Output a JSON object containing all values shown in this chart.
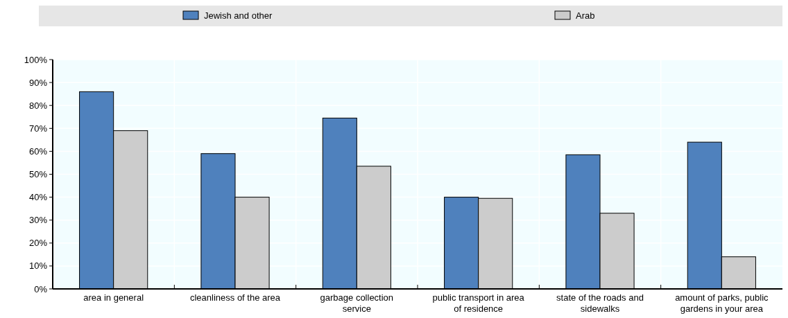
{
  "chart_data": {
    "type": "bar",
    "categories": [
      "area in general",
      "cleanliness of the area",
      "garbage collection service",
      "public transport in area of residence",
      "state of the roads and sidewalks",
      "amount of parks, public gardens in your area"
    ],
    "series": [
      {
        "name": "Jewish and other",
        "color": "#4f81bd",
        "values": [
          86,
          59,
          74.5,
          40,
          58.5,
          64
        ]
      },
      {
        "name": "Arab",
        "color": "#cccccc",
        "values": [
          69,
          40,
          53.5,
          39.5,
          33,
          14
        ]
      }
    ],
    "ylim": [
      0,
      100
    ],
    "yticks": [
      {
        "value": 0,
        "label": "0%"
      },
      {
        "value": 10,
        "label": "10%"
      },
      {
        "value": 20,
        "label": "20%"
      },
      {
        "value": 30,
        "label": "30%"
      },
      {
        "value": 40,
        "label": "40%"
      },
      {
        "value": 50,
        "label": "50%"
      },
      {
        "value": 60,
        "label": "60%"
      },
      {
        "value": 70,
        "label": "70%"
      },
      {
        "value": 80,
        "label": "80%"
      },
      {
        "value": 90,
        "label": "90%"
      },
      {
        "value": 100,
        "label": "100%"
      }
    ],
    "grid": true,
    "legend": "top"
  }
}
